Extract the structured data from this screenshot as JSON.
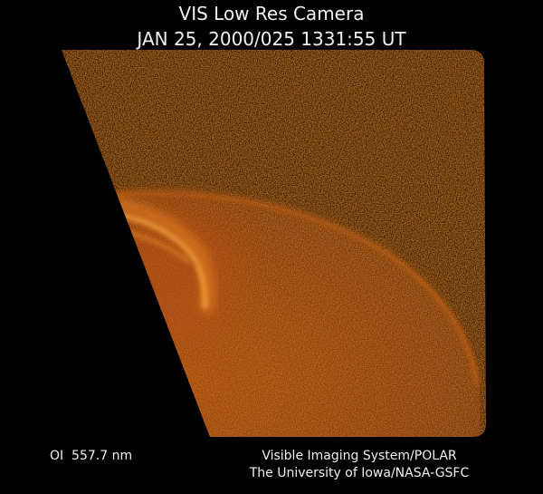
{
  "header": {
    "title": "VIS Low Res Camera",
    "timestamp": "JAN 25, 2000/025 1331:55 UT"
  },
  "footer": {
    "wavelength": "OI  557.7 nm",
    "credit_line_1": "Visible Imaging System/POLAR",
    "credit_line_2": "The University of Iowa/NASA-GSFC"
  }
}
